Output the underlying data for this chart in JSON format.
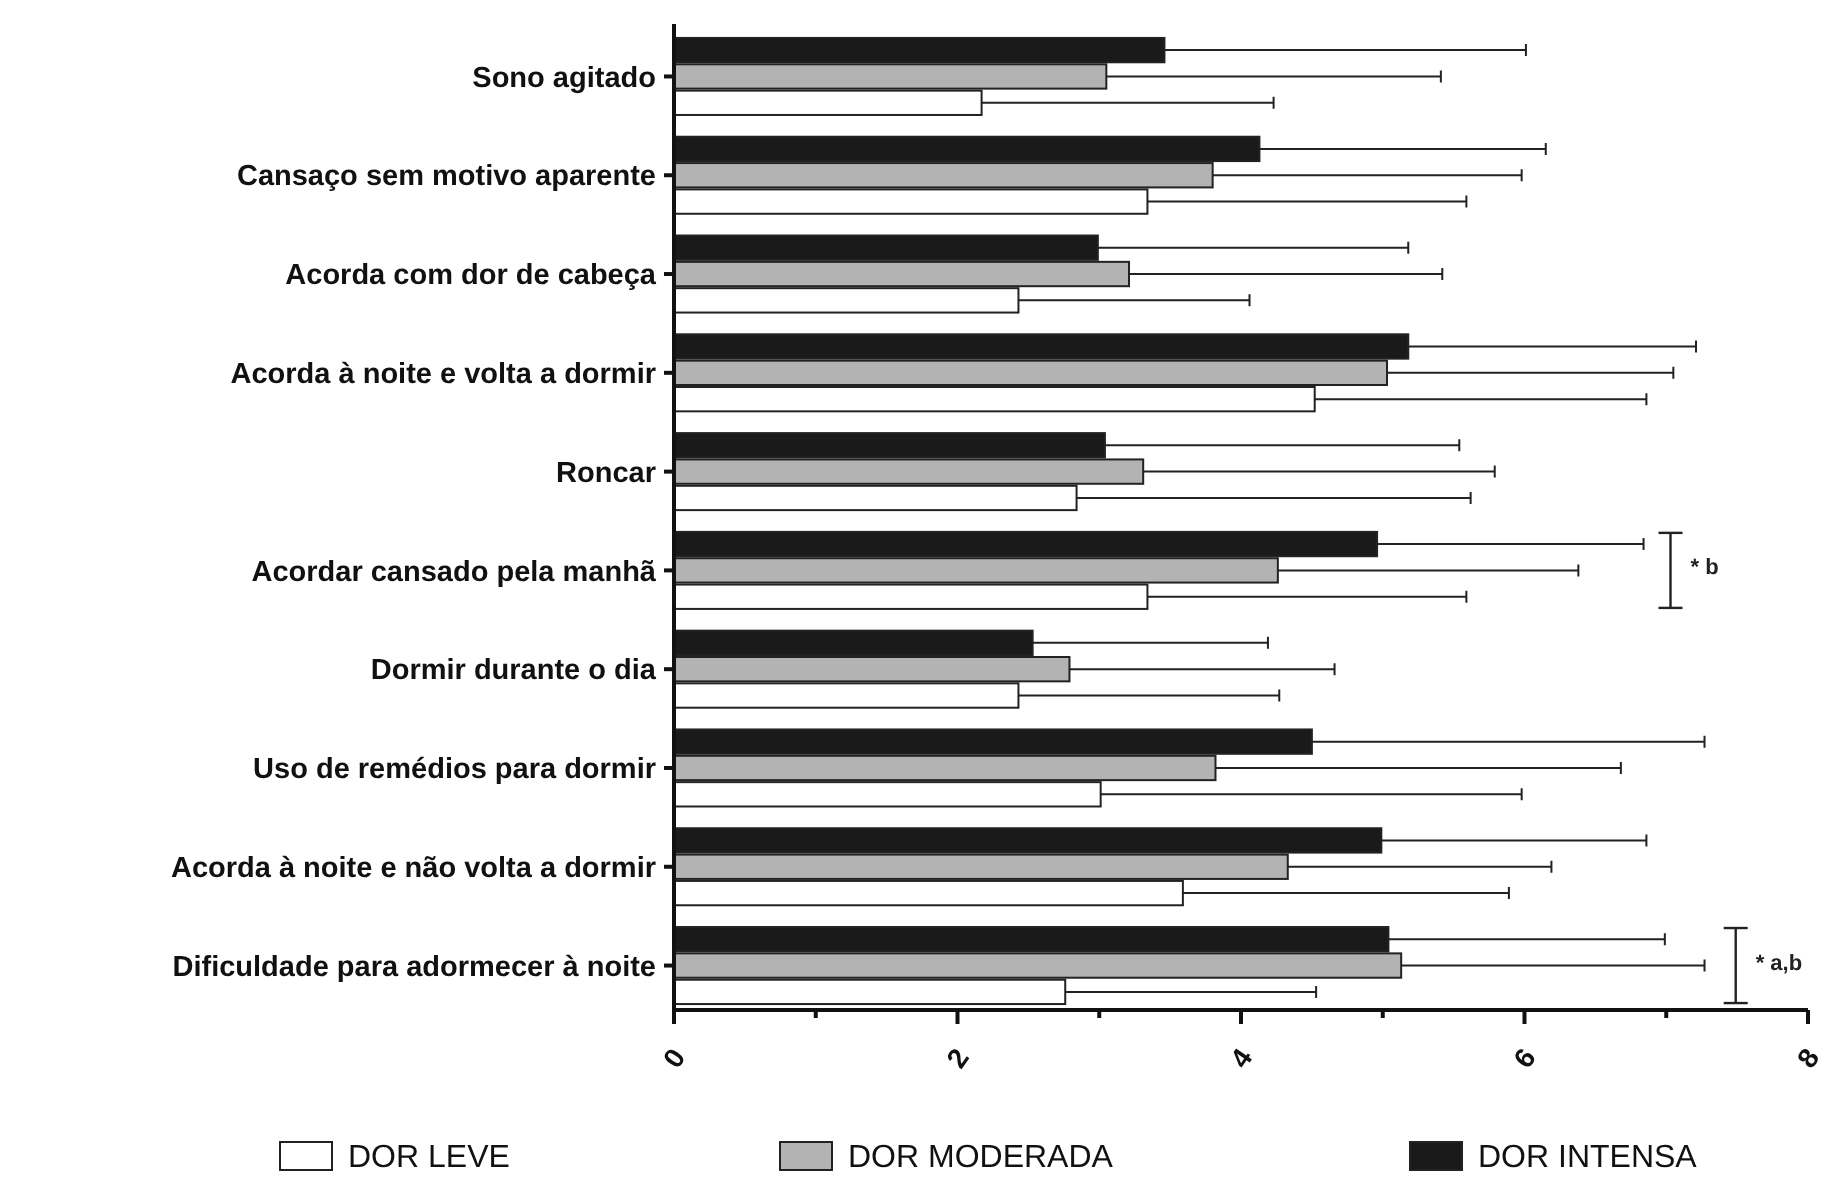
{
  "chart_data": {
    "type": "bar",
    "orientation": "horizontal",
    "categories": [
      "Sono agitado",
      "Cansaço sem motivo aparente",
      "Acorda com dor de cabeça",
      "Acorda à noite e volta a dormir",
      "Roncar",
      "Acordar cansado pela manhã",
      "Dormir durante o dia",
      "Uso de remédios para dormir",
      "Acorda à noite e não volta a dormir",
      "Dificuldade para adormecer à noite"
    ],
    "series": [
      {
        "name": "DOR LEVE",
        "color": "#ffffff",
        "values": [
          2.17,
          3.34,
          2.43,
          4.52,
          2.84,
          3.34,
          2.43,
          3.01,
          3.59,
          2.76
        ],
        "errors": [
          [
            2.17,
            4.23
          ],
          [
            3.34,
            5.59
          ],
          [
            2.43,
            4.06
          ],
          [
            4.52,
            6.86
          ],
          [
            2.84,
            5.62
          ],
          [
            3.34,
            5.59
          ],
          [
            2.43,
            4.27
          ],
          [
            3.01,
            5.98
          ],
          [
            3.59,
            5.89
          ],
          [
            2.76,
            4.53
          ]
        ]
      },
      {
        "name": "DOR MODERADA",
        "color": "#b3b3b3",
        "values": [
          3.05,
          3.8,
          3.21,
          5.03,
          3.31,
          4.26,
          2.79,
          3.82,
          4.33,
          5.13
        ],
        "errors": [
          [
            3.05,
            5.41
          ],
          [
            3.8,
            5.98
          ],
          [
            3.21,
            5.42
          ],
          [
            5.03,
            7.05
          ],
          [
            3.31,
            5.79
          ],
          [
            4.26,
            6.38
          ],
          [
            2.79,
            4.66
          ],
          [
            3.82,
            6.68
          ],
          [
            4.33,
            6.19
          ],
          [
            5.13,
            7.27
          ]
        ]
      },
      {
        "name": "DOR INTENSA",
        "color": "#1a1a1a",
        "values": [
          3.46,
          4.13,
          2.99,
          5.18,
          3.04,
          4.96,
          2.53,
          4.5,
          4.99,
          5.04
        ],
        "errors": [
          [
            3.46,
            6.01
          ],
          [
            4.13,
            6.15
          ],
          [
            2.99,
            5.18
          ],
          [
            5.18,
            7.21
          ],
          [
            3.04,
            5.54
          ],
          [
            4.96,
            6.84
          ],
          [
            2.53,
            4.19
          ],
          [
            4.5,
            7.27
          ],
          [
            4.99,
            6.86
          ],
          [
            5.04,
            6.99
          ]
        ]
      }
    ],
    "xlim": [
      0,
      8
    ],
    "xticks": [
      0,
      {
        "value": 1,
        "label": null
      },
      2,
      {
        "value": 3,
        "label": null
      },
      4,
      {
        "value": 5,
        "label": null
      },
      6,
      {
        "value": 7,
        "label": null
      },
      8
    ],
    "annotations": [
      "* b",
      "* a,b"
    ],
    "legend": "bottom",
    "grid": false
  }
}
